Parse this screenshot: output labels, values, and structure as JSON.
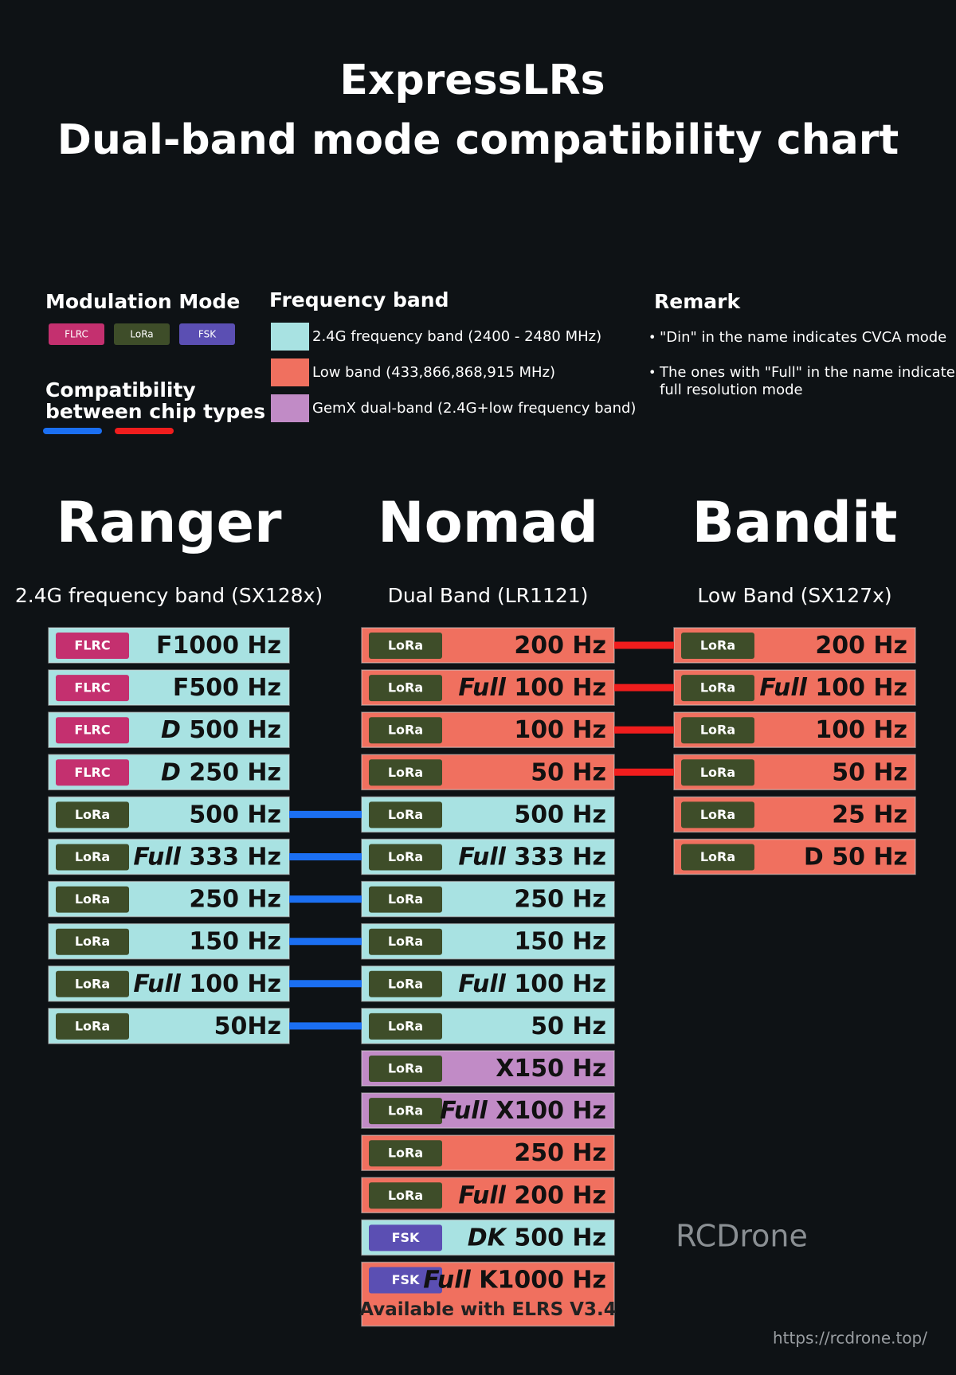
{
  "header": {
    "title": [
      "ExpressLRs",
      "Dual-band mode compatibility chart"
    ]
  },
  "legend": {
    "modulation_title": "Modulation Mode",
    "modulations": [
      {
        "label": "FLRC",
        "color": "#c4306f"
      },
      {
        "label": "LoRa",
        "color": "#3e4d29"
      },
      {
        "label": "FSK",
        "color": "#5b4fb3"
      }
    ],
    "compat_title": [
      "Compatibility",
      "between chip types"
    ],
    "compat_colors": [
      "#1b6ff2",
      "#f01d1d"
    ],
    "frequency_title": "Frequency band",
    "bands": [
      {
        "label": "2.4G frequency band (2400 - 2480 MHz)",
        "color": "#a8e2e2"
      },
      {
        "label": "Low band (433,866,868,915 MHz)",
        "color": "#f0705f"
      },
      {
        "label": "GemX dual-band (2.4G+low frequency band)",
        "color": "#c18bc6"
      }
    ],
    "remark_title": "Remark",
    "remarks": [
      [
        "\"Din\" in the name indicates CVCA mode"
      ],
      [
        "The ones with \"Full\" in the name indicate",
        "full resolution mode"
      ]
    ]
  },
  "columns": [
    {
      "name": "Ranger",
      "subtitle": "2.4G frequency band (SX128x)",
      "rows": [
        {
          "mod": "FLRC",
          "band": 0,
          "rate": "F1000 Hz"
        },
        {
          "mod": "FLRC",
          "band": 0,
          "rate": "F500 Hz"
        },
        {
          "mod": "FLRC",
          "band": 0,
          "prefix": "D",
          "rate": "500 Hz"
        },
        {
          "mod": "FLRC",
          "band": 0,
          "prefix": "D",
          "rate": "250 Hz"
        },
        {
          "mod": "LoRa",
          "band": 0,
          "rate": "500 Hz"
        },
        {
          "mod": "LoRa",
          "band": 0,
          "prefix": "Full",
          "rate": "333 Hz"
        },
        {
          "mod": "LoRa",
          "band": 0,
          "rate": "250 Hz"
        },
        {
          "mod": "LoRa",
          "band": 0,
          "rate": "150 Hz"
        },
        {
          "mod": "LoRa",
          "band": 0,
          "prefix": "Full",
          "rate": "100 Hz"
        },
        {
          "mod": "LoRa",
          "band": 0,
          "rate": "50Hz"
        }
      ]
    },
    {
      "name": "Nomad",
      "subtitle": "Dual Band (LR1121)",
      "rows": [
        {
          "mod": "LoRa",
          "band": 1,
          "rate": "200 Hz"
        },
        {
          "mod": "LoRa",
          "band": 1,
          "prefix": "Full",
          "rate": "100 Hz"
        },
        {
          "mod": "LoRa",
          "band": 1,
          "rate": "100 Hz"
        },
        {
          "mod": "LoRa",
          "band": 1,
          "rate": "50 Hz"
        },
        {
          "mod": "LoRa",
          "band": 0,
          "rate": "500 Hz"
        },
        {
          "mod": "LoRa",
          "band": 0,
          "prefix": "Full",
          "rate": "333 Hz"
        },
        {
          "mod": "LoRa",
          "band": 0,
          "rate": "250 Hz"
        },
        {
          "mod": "LoRa",
          "band": 0,
          "rate": "150 Hz"
        },
        {
          "mod": "LoRa",
          "band": 0,
          "prefix": "Full",
          "rate": "100 Hz"
        },
        {
          "mod": "LoRa",
          "band": 0,
          "rate": "50 Hz"
        },
        {
          "mod": "LoRa",
          "band": 2,
          "rate": "X150 Hz"
        },
        {
          "mod": "LoRa",
          "band": 2,
          "prefix": "Full",
          "rate": "X100 Hz"
        },
        {
          "mod": "LoRa",
          "band": 1,
          "rate": "250 Hz"
        },
        {
          "mod": "LoRa",
          "band": 1,
          "prefix": "Full",
          "rate": "200 Hz"
        },
        {
          "mod": "FSK",
          "band": 0,
          "prefix": "DK",
          "rate": "500 Hz"
        },
        {
          "mod": "FSK",
          "band": 1,
          "prefix": "Full",
          "rate": "K1000 Hz",
          "note": "Available with ELRS V3.4"
        }
      ]
    },
    {
      "name": "Bandit",
      "subtitle": "Low Band (SX127x)",
      "rows": [
        {
          "mod": "LoRa",
          "band": 1,
          "rate": "200 Hz"
        },
        {
          "mod": "LoRa",
          "band": 1,
          "prefix": "Full",
          "rate": "100 Hz"
        },
        {
          "mod": "LoRa",
          "band": 1,
          "rate": "100 Hz"
        },
        {
          "mod": "LoRa",
          "band": 1,
          "rate": "50 Hz"
        },
        {
          "mod": "LoRa",
          "band": 1,
          "rate": "25 Hz"
        },
        {
          "mod": "LoRa",
          "band": 1,
          "rate": "D 50 Hz"
        }
      ]
    }
  ],
  "links": [
    {
      "from": [
        0,
        4
      ],
      "to": [
        1,
        4
      ],
      "compat": 0
    },
    {
      "from": [
        0,
        5
      ],
      "to": [
        1,
        5
      ],
      "compat": 0
    },
    {
      "from": [
        0,
        6
      ],
      "to": [
        1,
        6
      ],
      "compat": 0
    },
    {
      "from": [
        0,
        7
      ],
      "to": [
        1,
        7
      ],
      "compat": 0
    },
    {
      "from": [
        0,
        8
      ],
      "to": [
        1,
        8
      ],
      "compat": 0
    },
    {
      "from": [
        0,
        9
      ],
      "to": [
        1,
        9
      ],
      "compat": 0
    },
    {
      "from": [
        1,
        0
      ],
      "to": [
        2,
        0
      ],
      "compat": 1
    },
    {
      "from": [
        1,
        1
      ],
      "to": [
        2,
        1
      ],
      "compat": 1
    },
    {
      "from": [
        1,
        2
      ],
      "to": [
        2,
        2
      ],
      "compat": 1
    },
    {
      "from": [
        1,
        3
      ],
      "to": [
        2,
        3
      ],
      "compat": 1
    }
  ],
  "watermark": {
    "brand": "RCDrone",
    "url": "https://rcdrone.top/"
  }
}
